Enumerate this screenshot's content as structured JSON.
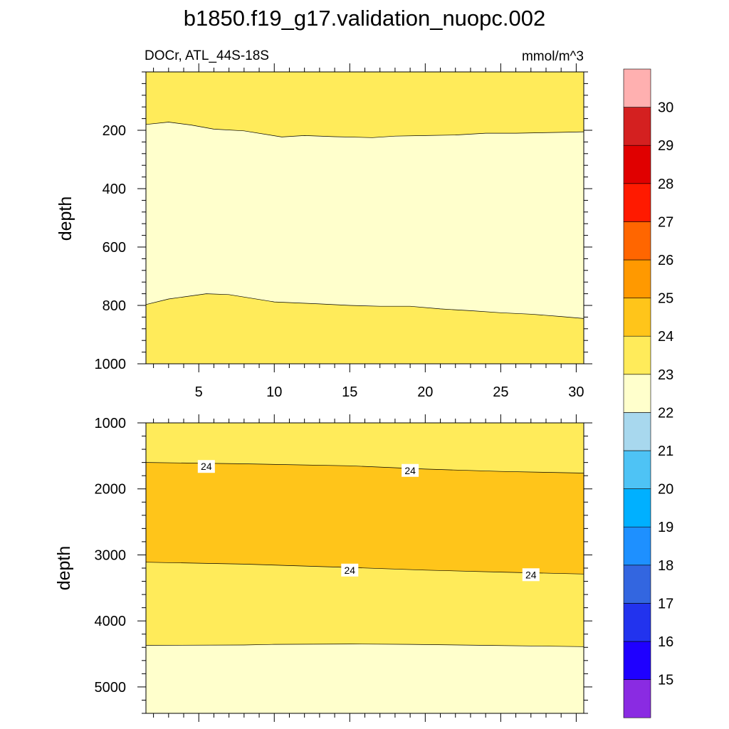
{
  "chart_data": {
    "type": "contour",
    "title": "b1850.f19_g17.validation_nuopc.002",
    "subtitle_left": "DOCr, ATL_44S-18S",
    "units": "mmol/m^3",
    "colorbar": {
      "labels": [
        "15",
        "16",
        "17",
        "18",
        "19",
        "20",
        "21",
        "22",
        "23",
        "24",
        "25",
        "26",
        "27",
        "28",
        "29",
        "30"
      ],
      "colors": [
        "#8a2be2",
        "#1f00ff",
        "#2233ee",
        "#3366e0",
        "#1e90ff",
        "#00b0ff",
        "#4ec3f5",
        "#a8d8ee",
        "#ffffcc",
        "#ffeb5a",
        "#ffc51a",
        "#ff9900",
        "#ff6600",
        "#ff1a00",
        "#e00000",
        "#d42020",
        "#ffb0b0"
      ]
    },
    "panels": [
      {
        "ylabel": "depth",
        "xlim": [
          1.5,
          30.5
        ],
        "ylim": [
          0,
          1000
        ],
        "yticks": [
          200,
          400,
          600,
          800,
          1000
        ],
        "xticks": [
          5,
          10,
          15,
          20,
          25,
          30
        ],
        "fills": [
          {
            "level": "23-24",
            "color": "#ffeb5a"
          },
          {
            "level": "22-23",
            "color": "#ffffcc",
            "top": [
              [
                1.5,
                180
              ],
              [
                3,
                172
              ],
              [
                4.5,
                182
              ],
              [
                6,
                196
              ],
              [
                8,
                202
              ],
              [
                10.5,
                223
              ],
              [
                12,
                218
              ],
              [
                14,
                222
              ],
              [
                16.5,
                225
              ],
              [
                18,
                220
              ],
              [
                20,
                218
              ],
              [
                22,
                216
              ],
              [
                24,
                210
              ],
              [
                26,
                210
              ],
              [
                29,
                207
              ],
              [
                30.5,
                205
              ]
            ],
            "bottom": [
              [
                1.5,
                797
              ],
              [
                3,
                778
              ],
              [
                5.5,
                760
              ],
              [
                7,
                763
              ],
              [
                10,
                788
              ],
              [
                13,
                795
              ],
              [
                15,
                800
              ],
              [
                17,
                803
              ],
              [
                19,
                803
              ],
              [
                21,
                812
              ],
              [
                23,
                818
              ],
              [
                25,
                825
              ],
              [
                27,
                830
              ],
              [
                29,
                838
              ],
              [
                30.5,
                845
              ]
            ]
          }
        ],
        "labels": []
      },
      {
        "ylabel": "depth",
        "xlim": [
          1.5,
          30.5
        ],
        "ylim": [
          1000,
          5400
        ],
        "yticks": [
          1000,
          2000,
          3000,
          4000,
          5000
        ],
        "fills": [
          {
            "level": "23-24",
            "color": "#ffeb5a"
          },
          {
            "level": "24-25",
            "color": "#ffc51a",
            "top": [
              [
                1.5,
                1600
              ],
              [
                8,
                1620
              ],
              [
                15,
                1650
              ],
              [
                20,
                1700
              ],
              [
                25,
                1735
              ],
              [
                30.5,
                1760
              ]
            ],
            "bottom": [
              [
                1.5,
                3110
              ],
              [
                8,
                3140
              ],
              [
                15,
                3190
              ],
              [
                20,
                3230
              ],
              [
                25,
                3260
              ],
              [
                30.5,
                3290
              ]
            ]
          },
          {
            "level": "22-23",
            "color": "#ffffcc",
            "top": [
              [
                1.5,
                4370
              ],
              [
                8,
                4365
              ],
              [
                10,
                4355
              ],
              [
                15,
                4350
              ],
              [
                19,
                4355
              ],
              [
                24,
                4370
              ],
              [
                30.5,
                4390
              ]
            ],
            "bottom": null
          }
        ],
        "labels": [
          {
            "text": "24",
            "x": 5.5,
            "y": 1660
          },
          {
            "text": "24",
            "x": 19,
            "y": 1720
          },
          {
            "text": "24",
            "x": 15,
            "y": 3230
          },
          {
            "text": "24",
            "x": 27,
            "y": 3300
          }
        ]
      }
    ]
  }
}
